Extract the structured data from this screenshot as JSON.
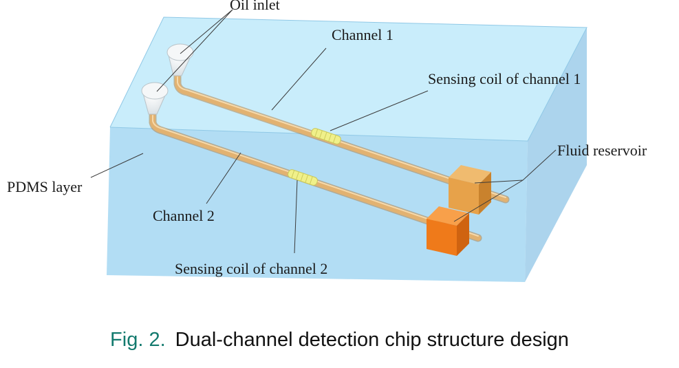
{
  "diagram": {
    "labels": {
      "oil_inlet": "Oil inlet",
      "channel_1": "Channel 1",
      "sensing_coil_1": "Sensing coil of channel 1",
      "fluid_reservoir": "Fluid reservoir",
      "pdms_layer": "PDMS layer",
      "channel_2": "Channel 2",
      "sensing_coil_2": "Sensing coil of channel 2"
    },
    "colors": {
      "pdms_top": "#c6ecfb",
      "pdms_front": "#aad9f3",
      "pdms_side": "#9dcdea",
      "channel": "#e2b271",
      "coil": "#f0f08a",
      "reservoir_1": "#e7a24a",
      "reservoir_2": "#ef7a1a"
    }
  },
  "caption": {
    "number": "Fig. 2.",
    "text": "Dual-channel detection chip structure design"
  }
}
